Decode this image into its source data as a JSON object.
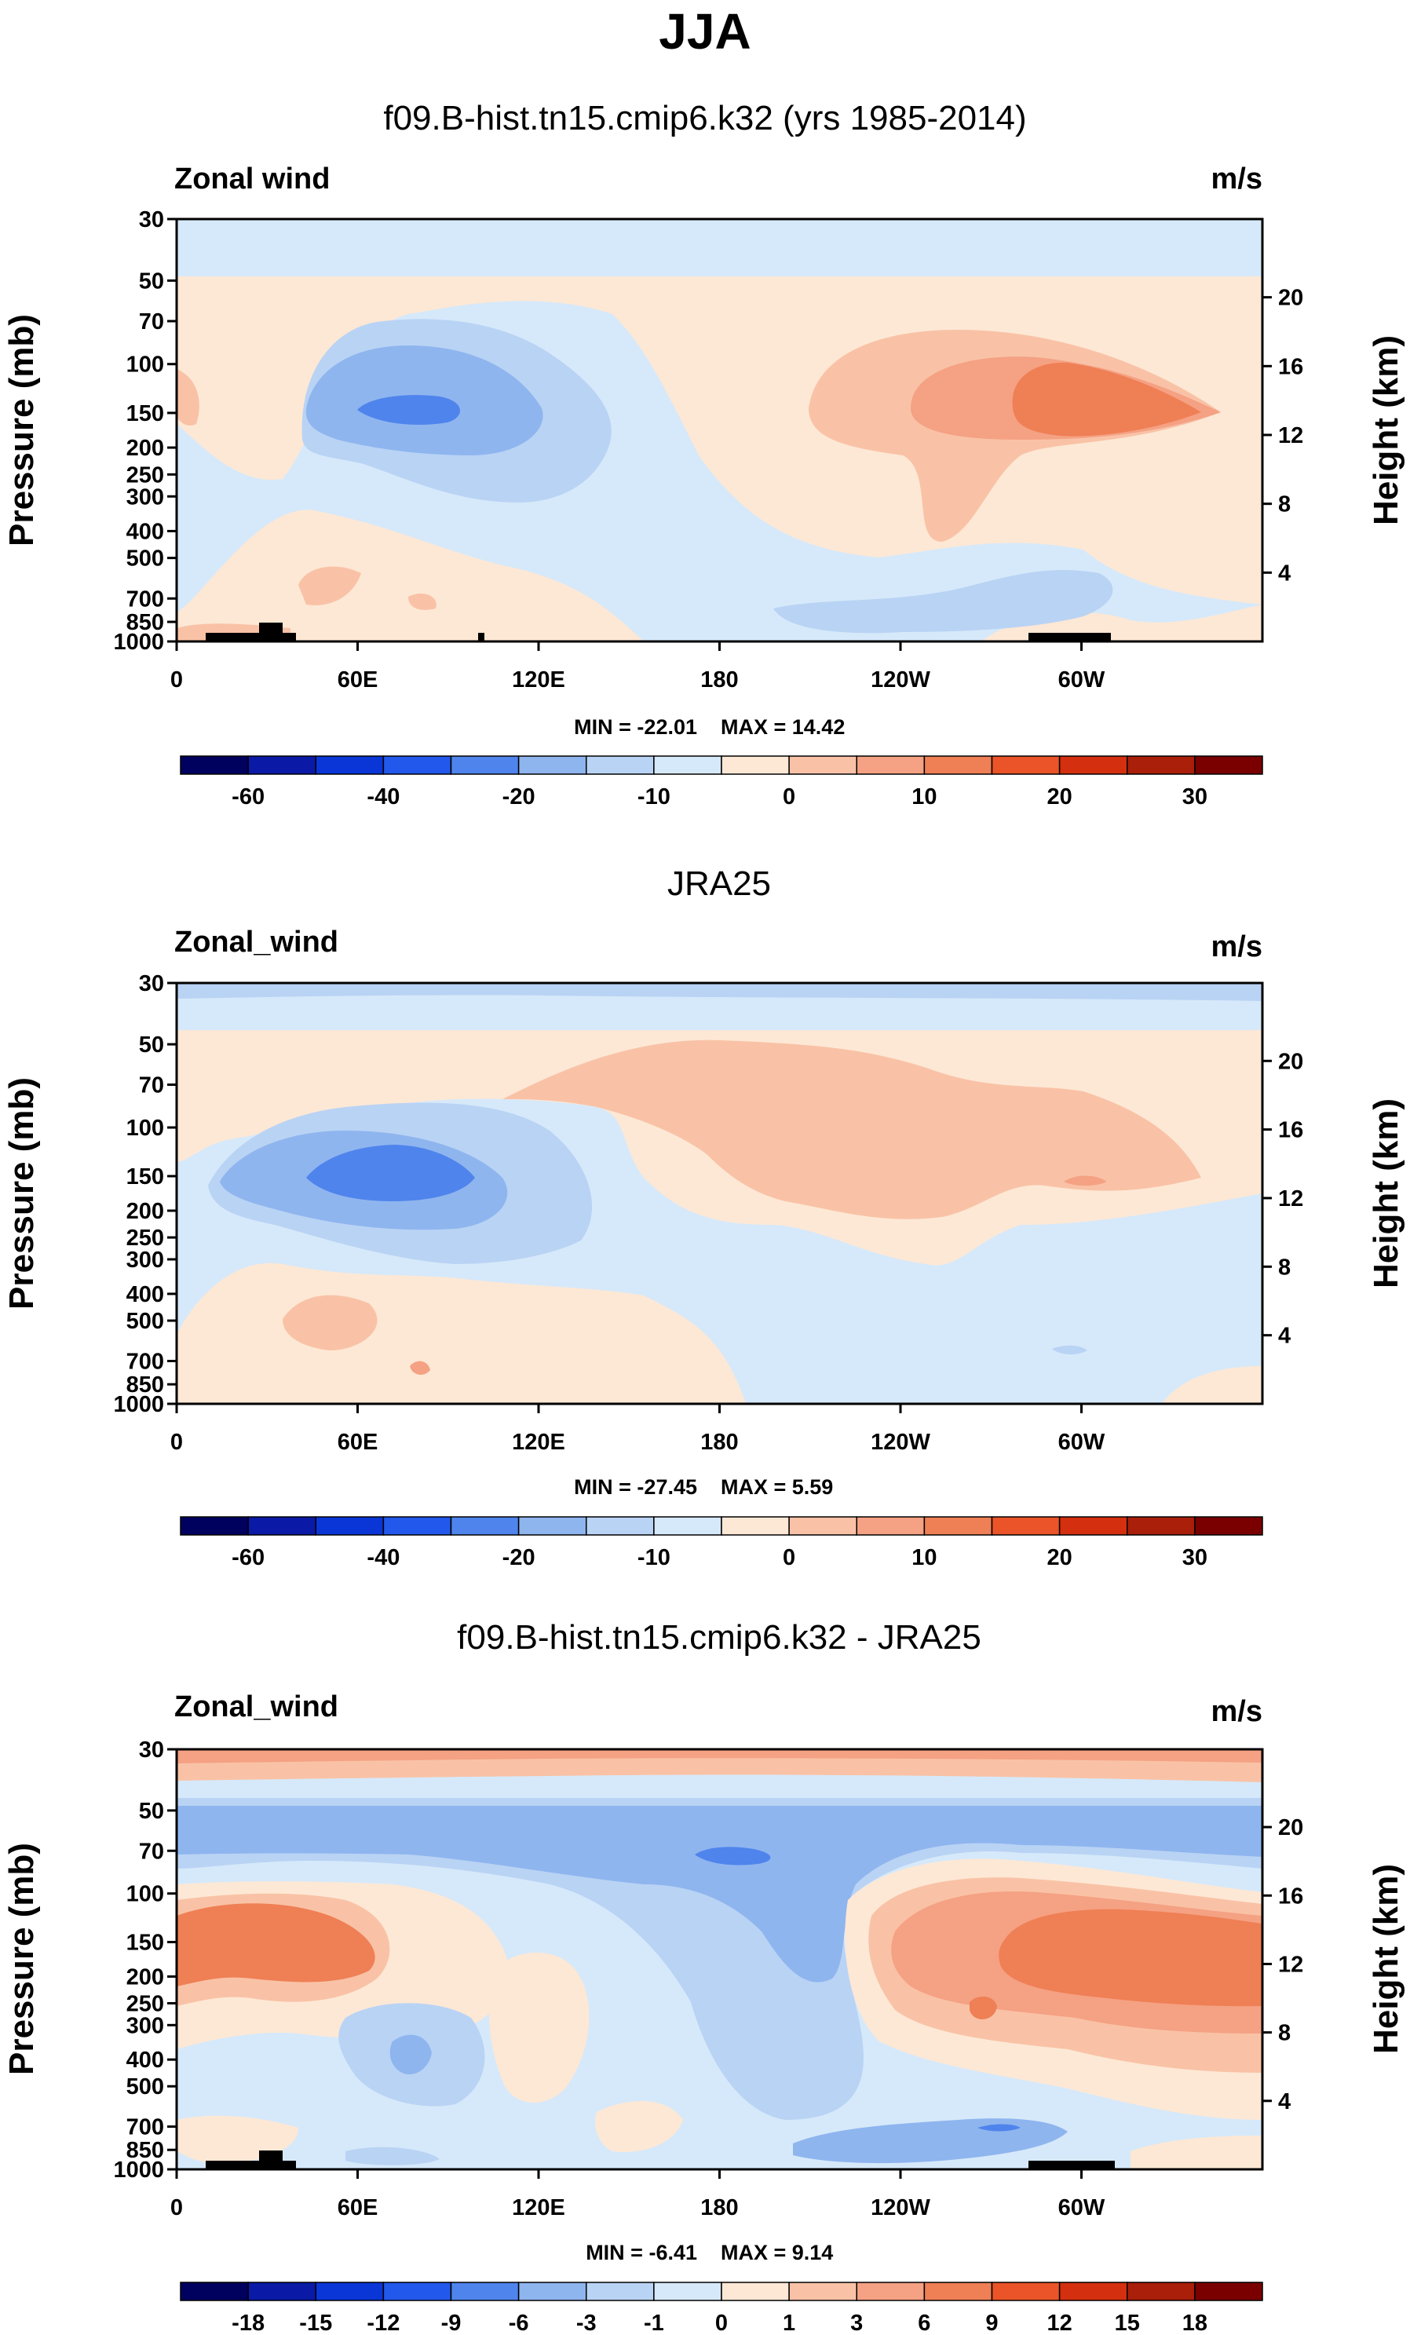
{
  "figure_title": "JJA",
  "chart_data": [
    {
      "type": "heatmap",
      "title": "f09.B-hist.tn15.cmip6.k32 (yrs 1985-2014)",
      "variable_label": "Zonal wind",
      "units": "m/s",
      "ylabel": "Pressure (mb)",
      "y2label": "Height (km)",
      "pressure_ticks": [
        "30",
        "50",
        "70",
        "100",
        "150",
        "200",
        "250",
        "300",
        "400",
        "500",
        "700",
        "850",
        "1000"
      ],
      "height_ticks": [
        "20",
        "16",
        "12",
        "8",
        "4"
      ],
      "longitude_ticks": [
        "0",
        "60E",
        "120E",
        "180",
        "120W",
        "60W"
      ],
      "min_label": "MIN = -22.01",
      "max_label": "MAX =  14.42",
      "min": -22.01,
      "max": 14.42,
      "colorbar_labels": [
        "-60",
        "-40",
        "-20",
        "-10",
        "0",
        "10",
        "20",
        "30"
      ],
      "colorbar_levels": [
        -70,
        -60,
        -50,
        -40,
        -30,
        -20,
        -15,
        -10,
        -5,
        0,
        5,
        10,
        15,
        20,
        25,
        30,
        35
      ],
      "field_features": [
        {
          "lon": 85,
          "p": 150,
          "value": -22
        },
        {
          "lon": 280,
          "p": 150,
          "value": 14
        },
        {
          "lon": 235,
          "p": 850,
          "value": -8
        },
        {
          "lon": 55,
          "p": 700,
          "value": 6
        },
        {
          "lon": 30,
          "p": 40,
          "value": -5
        }
      ]
    },
    {
      "type": "heatmap",
      "title": "JRA25",
      "variable_label": "Zonal_wind",
      "units": "m/s",
      "ylabel": "Pressure (mb)",
      "y2label": "Height (km)",
      "pressure_ticks": [
        "30",
        "50",
        "70",
        "100",
        "150",
        "200",
        "250",
        "300",
        "400",
        "500",
        "700",
        "850",
        "1000"
      ],
      "height_ticks": [
        "20",
        "16",
        "12",
        "8",
        "4"
      ],
      "longitude_ticks": [
        "0",
        "60E",
        "120E",
        "180",
        "120W",
        "60W"
      ],
      "min_label": "MIN = -27.45",
      "max_label": "MAX =   5.59",
      "min": -27.45,
      "max": 5.59,
      "colorbar_labels": [
        "-60",
        "-40",
        "-20",
        "-10",
        "0",
        "10",
        "20",
        "30"
      ],
      "colorbar_levels": [
        -70,
        -60,
        -50,
        -40,
        -30,
        -20,
        -15,
        -10,
        -5,
        0,
        5,
        10,
        15,
        20,
        25,
        30,
        35
      ],
      "field_features": [
        {
          "lon": 70,
          "p": 150,
          "value": -27
        },
        {
          "lon": 250,
          "p": 100,
          "value": 4
        },
        {
          "lon": 60,
          "p": 700,
          "value": 4
        },
        {
          "lon": 180,
          "p": 35,
          "value": -6
        }
      ]
    },
    {
      "type": "heatmap",
      "title": "f09.B-hist.tn15.cmip6.k32 - JRA25",
      "variable_label": "Zonal_wind",
      "units": "m/s",
      "ylabel": "Pressure (mb)",
      "y2label": "Height (km)",
      "pressure_ticks": [
        "30",
        "50",
        "70",
        "100",
        "150",
        "200",
        "250",
        "300",
        "400",
        "500",
        "700",
        "850",
        "1000"
      ],
      "height_ticks": [
        "20",
        "16",
        "12",
        "8",
        "4"
      ],
      "longitude_ticks": [
        "0",
        "60E",
        "120E",
        "180",
        "120W",
        "60W"
      ],
      "min_label": "MIN =  -6.41",
      "max_label": "MAX =   9.14",
      "min": -6.41,
      "max": 9.14,
      "colorbar_labels": [
        "-18",
        "-15",
        "-12",
        "-9",
        "-6",
        "-3",
        "-1",
        "0",
        "1",
        "3",
        "6",
        "9",
        "12",
        "15",
        "18"
      ],
      "colorbar_levels": [
        -21,
        -18,
        -15,
        -12,
        -9,
        -6,
        -3,
        -1,
        0,
        1,
        3,
        6,
        9,
        12,
        15,
        18,
        21
      ],
      "field_features": [
        {
          "lon": 30,
          "p": 150,
          "value": 9
        },
        {
          "lon": 290,
          "p": 150,
          "value": 8
        },
        {
          "lon": 180,
          "p": 70,
          "value": -6
        },
        {
          "lon": 250,
          "p": 850,
          "value": -5
        },
        {
          "lon": 170,
          "p": 33,
          "value": 3
        }
      ]
    }
  ]
}
